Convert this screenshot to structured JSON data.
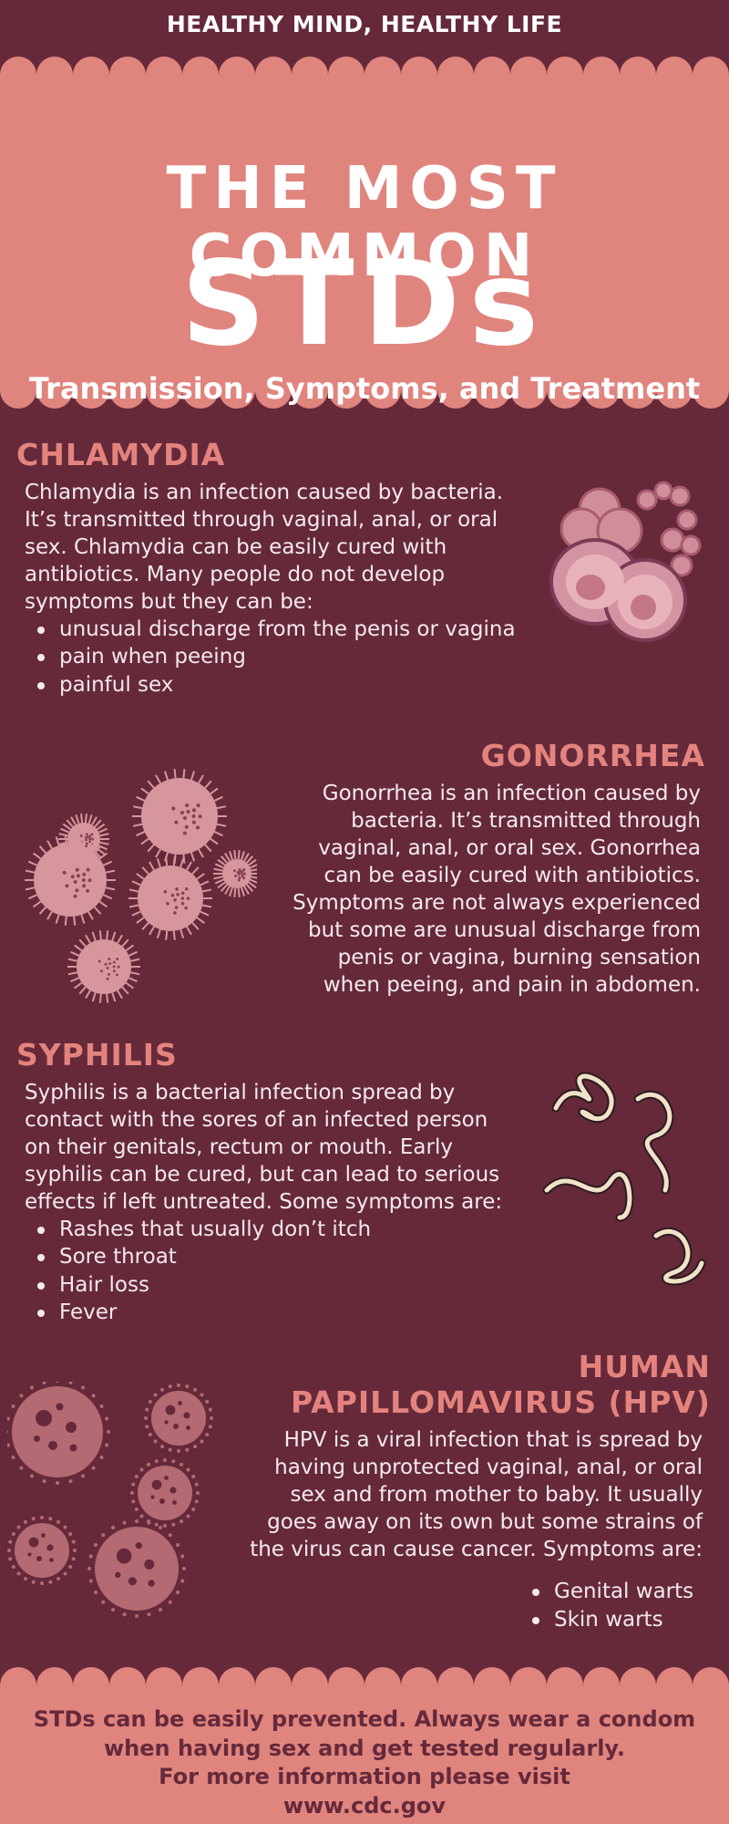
{
  "header": {
    "tagline": "HEALTHY MIND, HEALTHY LIFE",
    "title_line1": "THE MOST COMMON",
    "title_line2": "STDs",
    "subtitle": "Transmission, Symptoms, and Treatment"
  },
  "colors": {
    "background": "#65293a",
    "accent": "#e0847e",
    "title_pink": "#e4837d",
    "text": "#f6eaec"
  },
  "sections": {
    "chlamydia": {
      "title": "CHLAMYDIA",
      "lines": [
        "Chlamydia is an infection caused by bacteria.",
        "It’s transmitted through vaginal, anal, or oral",
        "sex. Chlamydia can be easily cured with",
        "antibiotics. Many people do not develop",
        "symptoms but they can be:"
      ],
      "bullets": [
        "unusual discharge from the penis or vagina",
        "pain when peeing",
        "painful sex"
      ],
      "icon": "bacteria-cluster-icon"
    },
    "gonorrhea": {
      "title": "GONORRHEA",
      "lines": [
        "Gonorrhea is an infection caused by",
        "bacteria. It’s transmitted through",
        "vaginal, anal, or oral sex. Gonorrhea",
        "can be easily cured with antibiotics.",
        "Symptoms are not always experienced",
        "but some are unusual discharge from",
        "penis or vagina, burning sensation",
        "when peeing, and pain in abdomen."
      ],
      "icon": "spiky-bacteria-icon"
    },
    "syphilis": {
      "title": "SYPHILIS",
      "lines": [
        "Syphilis is a bacterial infection spread by",
        "contact with the sores of an infected person",
        "on their genitals, rectum or mouth. Early",
        "syphilis can be cured, but can lead to serious",
        "effects if left untreated. Some symptoms are:"
      ],
      "bullets": [
        "Rashes that usually don’t itch",
        "Sore throat",
        "Hair loss",
        "Fever"
      ],
      "icon": "spirochete-icon"
    },
    "hpv": {
      "title_line1": "HUMAN",
      "title_line2": "PAPILLOMAVIRUS (HPV)",
      "lines": [
        "HPV is a viral infection that is spread by",
        "having unprotected vaginal, anal, or oral",
        "sex and from mother to baby. It usually",
        "goes away on its own but some strains of",
        "the virus can cause cancer. Symptoms are:"
      ],
      "bullets": [
        "Genital warts",
        "Skin warts"
      ],
      "icon": "virus-particles-icon"
    }
  },
  "footer": {
    "line1": "STDs can be easily prevented. Always wear a condom",
    "line2": "when having sex and get tested regularly.",
    "line3": "For more information please visit",
    "line4": "www.cdc.gov"
  }
}
